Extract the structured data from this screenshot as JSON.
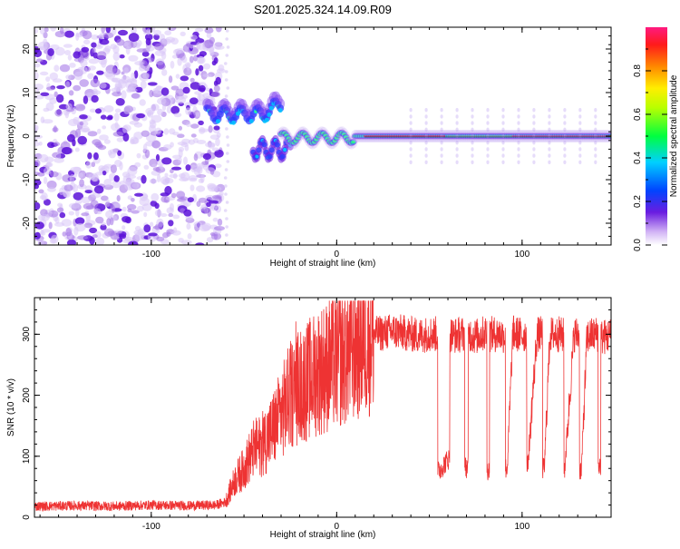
{
  "chart_data": [
    {
      "type": "heatmap",
      "title": "S201.2025.324.14.09.R09",
      "xlabel": "Height of straight line (km)",
      "ylabel": "Frequency (Hz)",
      "xlim": [
        -163,
        148
      ],
      "ylim": [
        -25,
        25
      ],
      "xticks": [
        -100,
        0,
        100
      ],
      "yticks": [
        -20,
        -10,
        0,
        10,
        20
      ],
      "colorbar": {
        "label": "Normalized spectral amplitude",
        "range": [
          0,
          1
        ],
        "ticks": [
          "0.0",
          "0.2",
          "0.4",
          "0.6",
          "0.8"
        ],
        "tick_values": [
          0,
          0.2,
          0.4,
          0.6,
          0.8
        ]
      },
      "features": {
        "noise_region_x": [
          -163,
          -63
        ],
        "clean_gap_x": [
          -63,
          -68
        ],
        "cluster_upper": {
          "x": [
            -70,
            -30
          ],
          "freq_hz": [
            3,
            8
          ]
        },
        "cluster_lower": {
          "x": [
            -45,
            -25
          ],
          "freq_hz": [
            -6,
            0
          ]
        },
        "main_line": {
          "x": [
            -30,
            148
          ],
          "freq_hz": 0
        }
      }
    },
    {
      "type": "line",
      "xlabel": "Height of straight line (km)",
      "ylabel": "SNR (10 * v/v)",
      "xlim": [
        -163,
        148
      ],
      "ylim": [
        0,
        360
      ],
      "xticks": [
        -100,
        0,
        100
      ],
      "yticks": [
        0,
        100,
        200,
        300
      ],
      "series": [
        {
          "name": "SNR",
          "color": "#ee3333",
          "x": [
            -163,
            -140,
            -120,
            -100,
            -80,
            -65,
            -60,
            -55,
            -50,
            -45,
            -40,
            -35,
            -30,
            -25,
            -20,
            -15,
            -10,
            -5,
            0,
            5,
            10,
            15,
            20,
            25,
            30,
            35,
            40,
            45,
            50,
            54,
            55,
            60,
            62,
            63,
            68,
            70,
            72,
            75,
            80,
            82,
            83,
            88,
            90,
            92,
            95,
            100,
            102,
            103,
            108,
            110,
            112,
            115,
            120,
            122,
            123,
            128,
            130,
            132,
            135,
            140,
            142,
            143,
            148
          ],
          "values": [
            18,
            19,
            18,
            20,
            19,
            20,
            25,
            60,
            80,
            110,
            120,
            140,
            170,
            200,
            215,
            225,
            240,
            248,
            258,
            268,
            280,
            292,
            300,
            302,
            305,
            303,
            300,
            298,
            301,
            300,
            75,
            95,
            300,
            298,
            300,
            82,
            300,
            296,
            302,
            78,
            300,
            300,
            298,
            80,
            302,
            298,
            300,
            82,
            299,
            300,
            80,
            300,
            300,
            298,
            80,
            300,
            300,
            78,
            296,
            300,
            85,
            295,
            298
          ]
        }
      ]
    }
  ]
}
